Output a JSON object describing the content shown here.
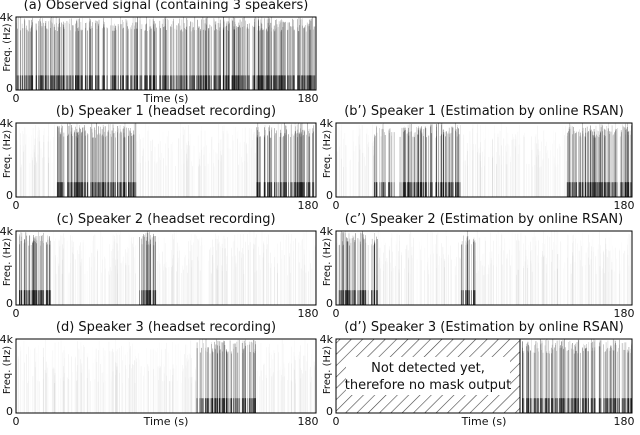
{
  "panels": [
    {
      "title": "(a) Observed signal (containing 3 speakers)",
      "ylabel": "Freq. (Hz)",
      "xlabel": "Time (s)",
      "xticks": [
        "0",
        "180"
      ],
      "yticks": [
        "4k",
        "0"
      ]
    },
    {
      "title": "(b) Speaker 1 (headset recording)",
      "ylabel": "Freq. (Hz)",
      "xticks": [
        "0",
        "180"
      ],
      "yticks": [
        "4k",
        "0"
      ]
    },
    {
      "title": "(b’) Speaker 1 (Estimation by online RSAN)",
      "ylabel": "Freq. (Hz)",
      "xticks": [
        "0",
        "180"
      ],
      "yticks": [
        "4k",
        "0"
      ]
    },
    {
      "title": "(c) Speaker 2 (headset recording)",
      "ylabel": "Freq. (Hz)",
      "xticks": [
        "0",
        "180"
      ],
      "yticks": [
        "4k",
        "0"
      ]
    },
    {
      "title": "(c’) Speaker 2 (Estimation by online RSAN)",
      "ylabel": "Freq. (Hz)",
      "xticks": [
        "0",
        "180"
      ],
      "yticks": [
        "4k",
        "0"
      ]
    },
    {
      "title": "(d) Speaker 3 (headset recording)",
      "ylabel": "Freq. (Hz)",
      "xlabel": "Time (s)",
      "xticks": [
        "0",
        "180"
      ],
      "yticks": [
        "4k",
        "0"
      ]
    },
    {
      "title": "(d’) Speaker 3 (Estimation by online RSAN)",
      "ylabel": "Freq. (Hz)",
      "xlabel": "Time (s)",
      "xticks": [
        "0",
        "180"
      ],
      "yticks": [
        "4k",
        "0"
      ]
    }
  ],
  "annotation": {
    "line1": "Not detected yet,",
    "line2": "therefore no mask output"
  }
}
